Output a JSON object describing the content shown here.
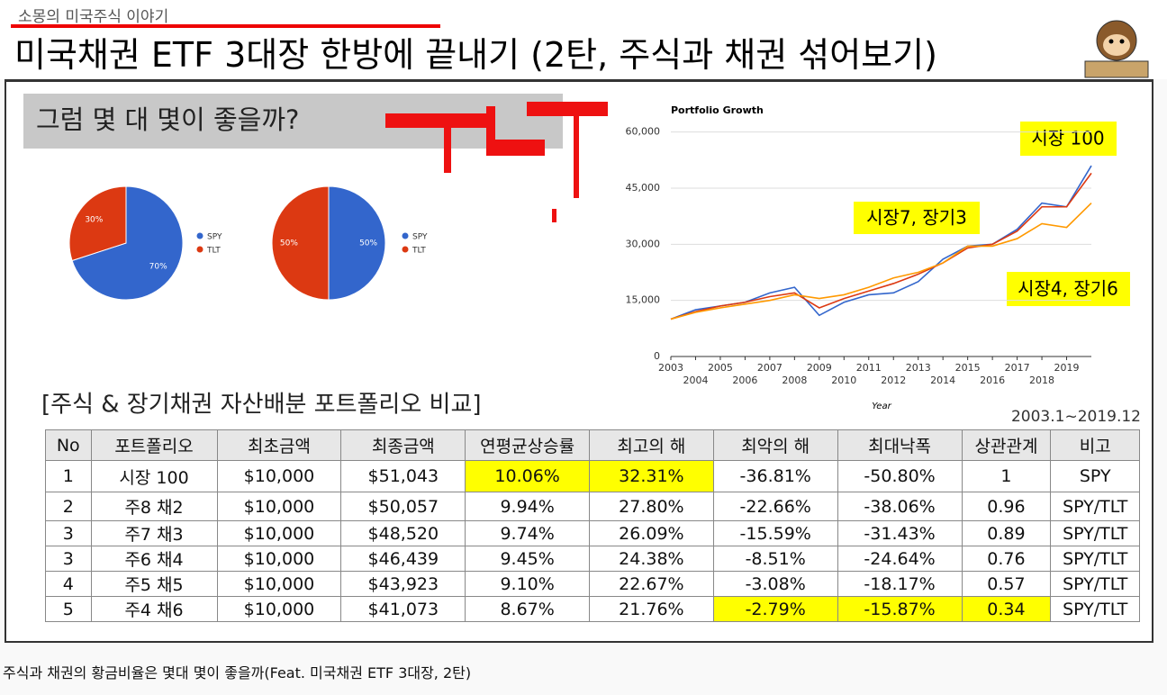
{
  "header": {
    "channel": "소몽의 미국주식 이야기",
    "title": "미국채권 ETF 3대장 한방에 끝내기 (2탄, 주식과 채권 섞어보기)"
  },
  "slide": {
    "question": "그럼 몇 대 몇이 좋을까?",
    "section_title": "[주식 & 장기채권 자산배분 포트폴리오 비교]",
    "period": "2003.1~2019.12"
  },
  "chart_data": [
    {
      "type": "pie",
      "categories": [
        "SPY",
        "TLT"
      ],
      "values": [
        70,
        30
      ],
      "value_labels": [
        "70%",
        "30%"
      ],
      "colors": [
        "#3366cc",
        "#dc3912"
      ]
    },
    {
      "type": "pie",
      "categories": [
        "SPY",
        "TLT"
      ],
      "values": [
        50,
        50
      ],
      "value_labels": [
        "50%",
        "50%"
      ],
      "colors": [
        "#3366cc",
        "#dc3912"
      ]
    },
    {
      "type": "line",
      "title": "Portfolio Growth",
      "x_label": "Year",
      "x": [
        2003,
        2004,
        2005,
        2006,
        2007,
        2008,
        2009,
        2010,
        2011,
        2012,
        2013,
        2014,
        2015,
        2016,
        2017,
        2018,
        2019,
        2020
      ],
      "series": [
        {
          "name": "시장 100",
          "color": "#3366cc",
          "values": [
            10000,
            12500,
            13500,
            14500,
            17000,
            18500,
            11000,
            14500,
            16500,
            17000,
            20000,
            26000,
            29500,
            30000,
            34000,
            41000,
            40000,
            51000
          ]
        },
        {
          "name": "시장7, 장기3",
          "color": "#dc3912",
          "values": [
            10000,
            12000,
            13500,
            14500,
            16000,
            17000,
            13000,
            15500,
            17500,
            19500,
            22000,
            25000,
            29000,
            30000,
            33500,
            40000,
            40000,
            49000
          ]
        },
        {
          "name": "시장4, 장기6",
          "color": "#ff9900",
          "values": [
            10000,
            11800,
            13000,
            14000,
            15000,
            16500,
            15500,
            16500,
            18500,
            21000,
            22500,
            25000,
            29500,
            29500,
            31500,
            35500,
            34500,
            41000
          ]
        }
      ],
      "xlim": [
        2003,
        2020
      ],
      "xticks": [
        2003,
        2004,
        2005,
        2006,
        2007,
        2008,
        2009,
        2010,
        2011,
        2012,
        2013,
        2014,
        2015,
        2016,
        2017,
        2018,
        2019
      ],
      "ylim": [
        0,
        64000
      ],
      "yticks": [
        0,
        {
          "value": 15000,
          "label": "15,000"
        },
        {
          "value": 30000,
          "label": "30,000"
        },
        {
          "value": 45000,
          "label": "45,000"
        },
        {
          "value": 60000,
          "label": "60,000"
        }
      ],
      "grid": true
    }
  ],
  "table": {
    "header": [
      "No",
      "포트폴리오",
      "최초금액",
      "최종금액",
      "연평균상승률",
      "최고의 해",
      "최악의 해",
      "최대낙폭",
      "상관관계",
      "비고"
    ],
    "rows": [
      [
        "1",
        "시장 100",
        "$10,000",
        "$51,043",
        "10.06%",
        "32.31%",
        "-36.81%",
        "-50.80%",
        "1",
        "SPY"
      ],
      [
        "2",
        "주8 채2",
        "$10,000",
        "$50,057",
        "9.94%",
        "27.80%",
        "-22.66%",
        "-38.06%",
        "0.96",
        "SPY/TLT"
      ],
      [
        "3",
        "주7 채3",
        "$10,000",
        "$48,520",
        "9.74%",
        "26.09%",
        "-15.59%",
        "-31.43%",
        "0.89",
        "SPY/TLT"
      ],
      [
        "3",
        "주6 채4",
        "$10,000",
        "$46,439",
        "9.45%",
        "24.38%",
        "-8.51%",
        "-24.64%",
        "0.76",
        "SPY/TLT"
      ],
      [
        "4",
        "주5 채5",
        "$10,000",
        "$43,923",
        "9.10%",
        "22.67%",
        "-3.08%",
        "-18.17%",
        "0.57",
        "SPY/TLT"
      ],
      [
        "5",
        "주4 채6",
        "$10,000",
        "$41,073",
        "8.67%",
        "21.76%",
        "-2.79%",
        "-15.87%",
        "0.34",
        "SPY/TLT"
      ]
    ]
  },
  "caption": "주식과 채권의 황금비율은 몇대 몇이 좋을까(Feat. 미국채권 ETF 3대장, 2탄)"
}
